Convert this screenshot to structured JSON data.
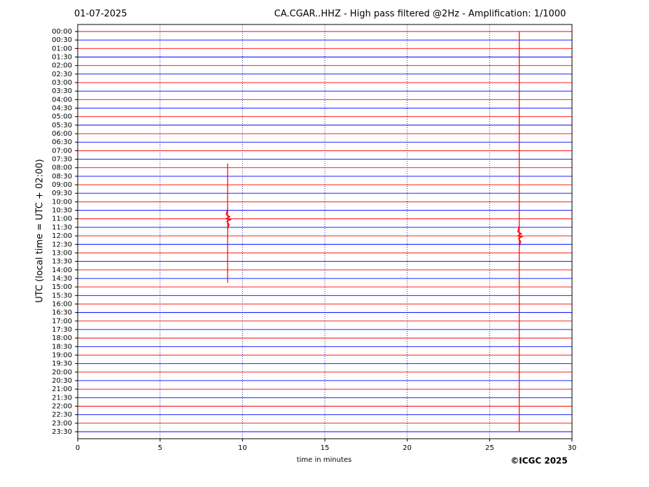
{
  "chart_data": {
    "type": "helicorder",
    "title_left": "01-07-2025",
    "title": "CA.CGAR..HHZ - High pass filtered @2Hz - Amplification: 1/1000",
    "xlabel": "time in minutes",
    "ylabel": "UTC (local time = UTC + 02:00)",
    "credit": "©ICGC 2025",
    "categories": [
      "00:00",
      "00:30",
      "01:00",
      "01:30",
      "02:00",
      "02:30",
      "03:00",
      "03:30",
      "04:00",
      "04:30",
      "05:00",
      "05:30",
      "06:00",
      "06:30",
      "07:00",
      "07:30",
      "08:00",
      "08:30",
      "09:00",
      "09:30",
      "10:00",
      "10:30",
      "11:00",
      "11:30",
      "12:00",
      "12:30",
      "13:00",
      "13:30",
      "14:00",
      "14:30",
      "15:00",
      "15:30",
      "16:00",
      "16:30",
      "17:00",
      "17:30",
      "18:00",
      "18:30",
      "19:00",
      "19:30",
      "20:00",
      "20:30",
      "21:00",
      "21:30",
      "22:00",
      "22:30",
      "23:00",
      "23:30"
    ],
    "colors": [
      "#ff0000",
      "#0000ff"
    ],
    "xlim": [
      0,
      30
    ],
    "xticks": [
      0,
      5,
      10,
      15,
      20,
      25,
      30
    ],
    "grid": true,
    "events": [
      {
        "x": 9.1,
        "y_from": 7.75,
        "y_to": 14.75,
        "peak": 11.0,
        "color": "#ff0000"
      },
      {
        "x": 26.8,
        "y_from": 0,
        "y_to": 23.5,
        "peak": 12.0,
        "color": "#ff0000"
      }
    ]
  }
}
